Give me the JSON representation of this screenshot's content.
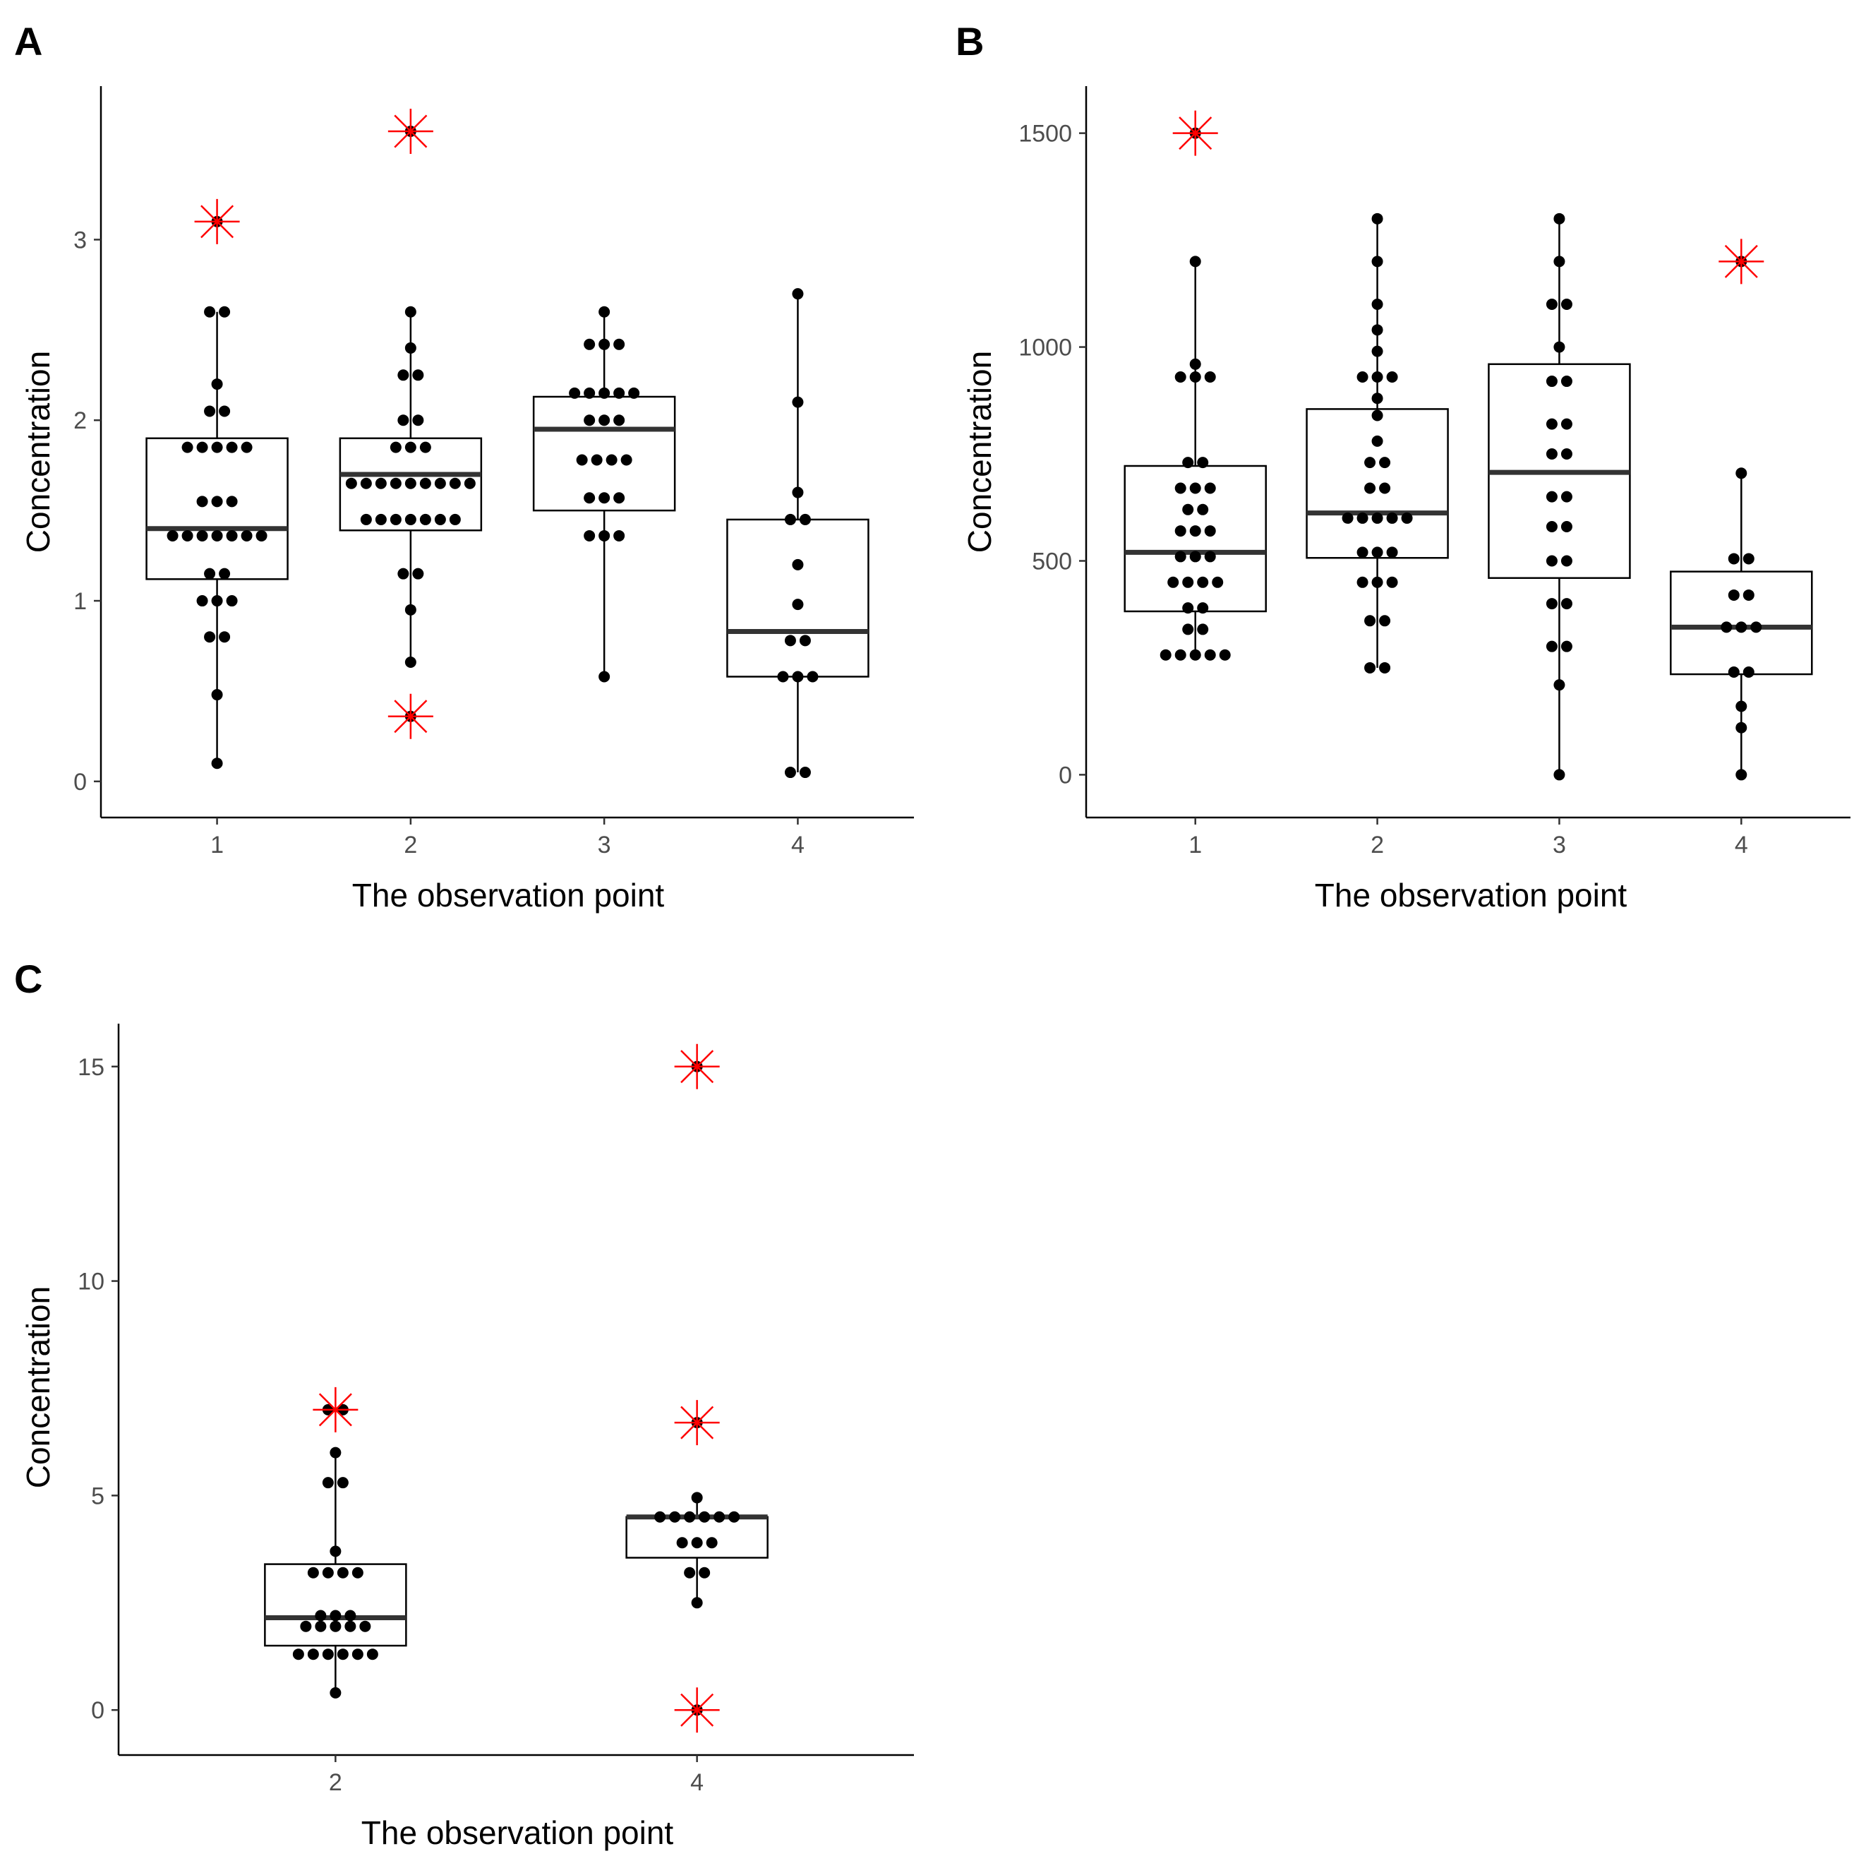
{
  "colors": {
    "outlier_marker": "#ff0000",
    "point": "#000000",
    "median": "#333333",
    "box_stroke": "#000000",
    "axis": "#000000",
    "tick_label": "#4d4d4d"
  },
  "chart_data": [
    {
      "panel": "A",
      "type": "boxplot-dotplot",
      "xlabel": "The observation point",
      "ylabel": "Concentration",
      "categories": [
        "1",
        "2",
        "3",
        "4"
      ],
      "yticks": [
        0,
        1,
        2,
        3
      ],
      "ylim": [
        -0.2,
        3.85
      ],
      "xlim": [
        0.4,
        4.6
      ],
      "boxes": [
        {
          "q1": 1.12,
          "median": 1.4,
          "q3": 1.9,
          "whisker_low": 0.1,
          "whisker_high": 2.6
        },
        {
          "q1": 1.39,
          "median": 1.7,
          "q3": 1.9,
          "whisker_low": 0.66,
          "whisker_high": 2.6
        },
        {
          "q1": 1.5,
          "median": 1.95,
          "q3": 2.13,
          "whisker_low": 0.58,
          "whisker_high": 2.6
        },
        {
          "q1": 0.58,
          "median": 0.83,
          "q3": 1.45,
          "whisker_low": 0.05,
          "whisker_high": 2.7
        }
      ],
      "points": [
        [
          3.1,
          2.6,
          2.6,
          2.2,
          2.05,
          2.05,
          1.85,
          1.85,
          1.85,
          1.85,
          1.85,
          1.55,
          1.55,
          1.55,
          1.36,
          1.36,
          1.36,
          1.36,
          1.36,
          1.36,
          1.36,
          1.15,
          1.15,
          1.0,
          1.0,
          1.0,
          0.8,
          0.8,
          0.48,
          0.1
        ],
        [
          3.6,
          2.6,
          2.4,
          2.25,
          2.25,
          2.0,
          2.0,
          1.85,
          1.85,
          1.85,
          1.65,
          1.65,
          1.65,
          1.65,
          1.65,
          1.65,
          1.65,
          1.65,
          1.65,
          1.45,
          1.45,
          1.45,
          1.45,
          1.45,
          1.45,
          1.45,
          1.15,
          1.15,
          0.95,
          0.66,
          0.36
        ],
        [
          2.6,
          2.42,
          2.42,
          2.42,
          2.15,
          2.15,
          2.15,
          2.15,
          2.15,
          2.0,
          2.0,
          2.0,
          1.78,
          1.78,
          1.78,
          1.78,
          1.57,
          1.57,
          1.57,
          1.36,
          1.36,
          1.36,
          0.58
        ],
        [
          2.7,
          2.1,
          1.6,
          1.45,
          1.45,
          1.2,
          0.98,
          0.78,
          0.78,
          0.58,
          0.58,
          0.58,
          0.05,
          0.05
        ]
      ],
      "outliers": [
        {
          "category": "1",
          "value": 3.1
        },
        {
          "category": "2",
          "value": 3.6
        },
        {
          "category": "2",
          "value": 0.36
        }
      ]
    },
    {
      "panel": "B",
      "type": "boxplot-dotplot",
      "xlabel": "The observation point",
      "ylabel": "Concentration",
      "categories": [
        "1",
        "2",
        "3",
        "4"
      ],
      "yticks": [
        0,
        500,
        1000,
        1500
      ],
      "ylim": [
        -100,
        1610
      ],
      "xlim": [
        0.4,
        4.6
      ],
      "boxes": [
        {
          "q1": 382,
          "median": 520,
          "q3": 722,
          "whisker_low": 280,
          "whisker_high": 1200
        },
        {
          "q1": 507,
          "median": 612,
          "q3": 855,
          "whisker_low": 250,
          "whisker_high": 1300
        },
        {
          "q1": 460,
          "median": 707,
          "q3": 960,
          "whisker_low": 0,
          "whisker_high": 1300
        },
        {
          "q1": 235,
          "median": 345,
          "q3": 475,
          "whisker_low": 0,
          "whisker_high": 705
        }
      ],
      "points": [
        [
          1500,
          1200,
          960,
          930,
          930,
          930,
          730,
          730,
          670,
          670,
          670,
          620,
          620,
          570,
          570,
          570,
          510,
          510,
          510,
          450,
          450,
          450,
          450,
          390,
          390,
          340,
          340,
          280,
          280,
          280,
          280,
          280
        ],
        [
          1300,
          1200,
          1100,
          1040,
          990,
          930,
          930,
          930,
          880,
          840,
          780,
          730,
          730,
          670,
          670,
          600,
          600,
          600,
          600,
          600,
          520,
          520,
          520,
          450,
          450,
          450,
          360,
          360,
          250,
          250
        ],
        [
          1300,
          1200,
          1100,
          1100,
          1000,
          920,
          920,
          820,
          820,
          750,
          750,
          650,
          650,
          580,
          580,
          500,
          500,
          400,
          400,
          300,
          300,
          210,
          0
        ],
        [
          1200,
          705,
          505,
          505,
          420,
          420,
          345,
          345,
          345,
          240,
          240,
          160,
          110,
          0
        ]
      ],
      "outliers": [
        {
          "category": "1",
          "value": 1500
        },
        {
          "category": "4",
          "value": 1200
        }
      ]
    },
    {
      "panel": "C",
      "type": "boxplot-dotplot",
      "xlabel": "The observation point",
      "ylabel": "Concentration",
      "categories": [
        "2",
        "4"
      ],
      "yticks": [
        0,
        5,
        10,
        15
      ],
      "ylim": [
        -1.05,
        16.0
      ],
      "xlim": [
        0.4,
        2.6
      ],
      "boxes": [
        {
          "q1": 1.5,
          "median": 2.15,
          "q3": 3.4,
          "whisker_low": 0.4,
          "whisker_high": 6.0
        },
        {
          "q1": 3.55,
          "median": 4.5,
          "q3": 4.5,
          "whisker_low": 2.5,
          "whisker_high": 4.95
        }
      ],
      "points": [
        [
          7.0,
          7.0,
          6.0,
          5.3,
          5.3,
          3.7,
          3.2,
          3.2,
          3.2,
          3.2,
          2.2,
          2.2,
          2.2,
          1.95,
          1.95,
          1.95,
          1.95,
          1.95,
          1.3,
          1.3,
          1.3,
          1.3,
          1.3,
          1.3,
          0.4
        ],
        [
          15.0,
          6.7,
          4.95,
          4.5,
          4.5,
          4.5,
          4.5,
          4.5,
          4.5,
          3.9,
          3.9,
          3.9,
          3.2,
          3.2,
          2.5,
          0.0
        ]
      ],
      "outliers": [
        {
          "category": "2",
          "value": 7.0
        },
        {
          "category": "4",
          "value": 15.0
        },
        {
          "category": "4",
          "value": 6.7
        },
        {
          "category": "4",
          "value": 0.0
        }
      ]
    }
  ]
}
